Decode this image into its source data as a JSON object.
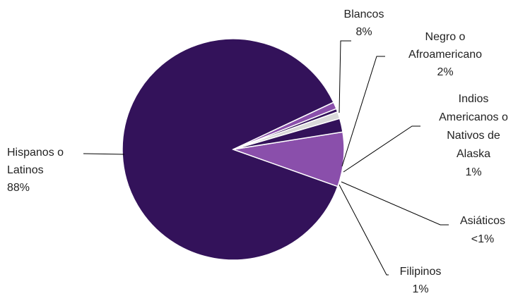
{
  "chart_data": {
    "type": "pie",
    "title": "",
    "slices": [
      {
        "name": "Hispanos o Latinos",
        "value": 88,
        "label_lines": [
          "Hispanos o",
          "Latinos",
          "88%"
        ],
        "color": "#33125a"
      },
      {
        "name": "Blancos",
        "value": 8,
        "label_lines": [
          "Blancos",
          "8%"
        ],
        "color": "#8a4fab"
      },
      {
        "name": "Negro o Afroamericano",
        "value": 2,
        "label_lines": [
          "Negro o",
          "Afroamericano",
          "2%"
        ],
        "color": "#33125a"
      },
      {
        "name": "Indios Americanos o Nativos de Alaska",
        "value": 1,
        "label_lines": [
          "Indios",
          "Americanos o",
          "Nativos de",
          "Alaska",
          "1%"
        ],
        "color": "#d9d9d9"
      },
      {
        "name": "Asiáticos",
        "value": 0.5,
        "label_lines": [
          "Asiáticos",
          "<1%"
        ],
        "color": "#33125a"
      },
      {
        "name": "Filipinos",
        "value": 1,
        "label_lines": [
          "Filipinos",
          "1%"
        ],
        "color": "#8a4fab"
      }
    ]
  }
}
